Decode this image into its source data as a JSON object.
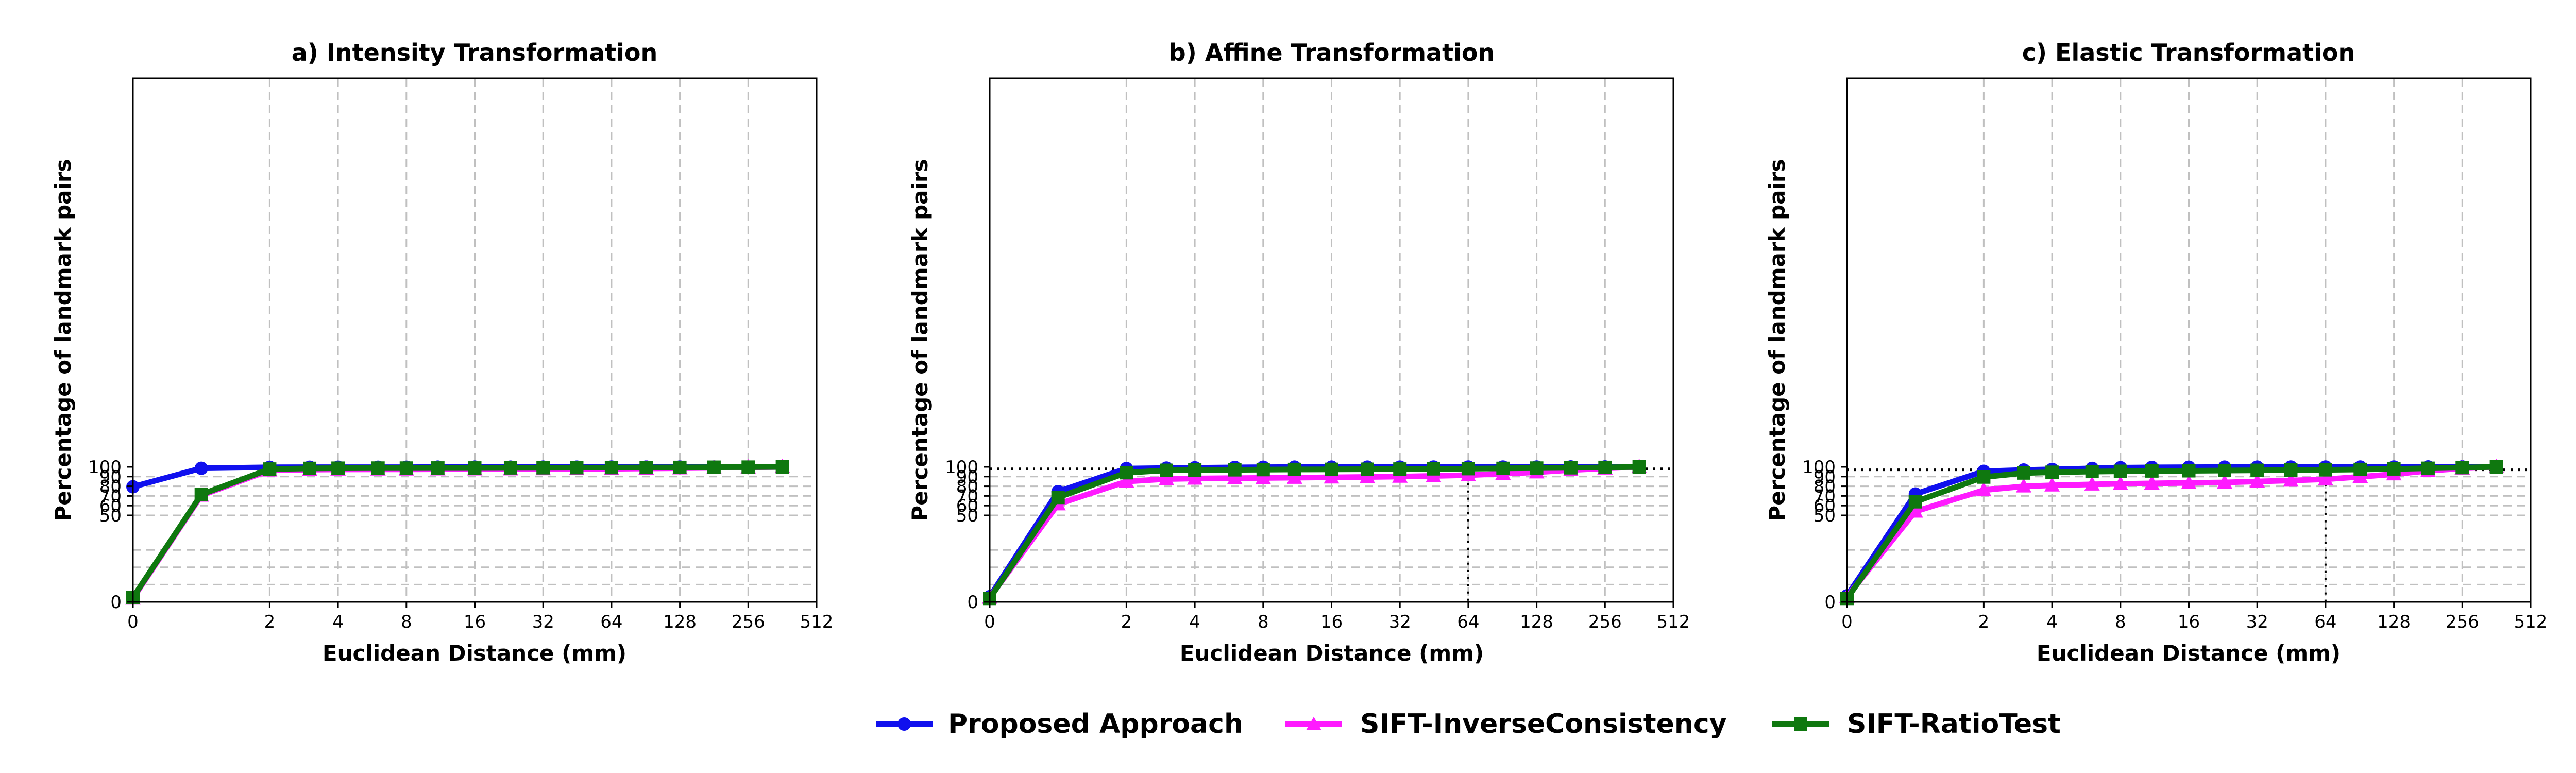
{
  "colors": {
    "proposed": "#1010ee",
    "sift_ic": "#ff1aff",
    "sift_rt": "#0f780f",
    "grid": "#c0c0c0",
    "axis": "#000000"
  },
  "legend": {
    "placement": "bottom-center",
    "items": [
      {
        "name": "Proposed Approach",
        "color": "#1010ee",
        "marker": "circle"
      },
      {
        "name": "SIFT-InverseConsistency",
        "color": "#ff1aff",
        "marker": "triangle"
      },
      {
        "name": "SIFT-RatioTest",
        "color": "#0f780f",
        "marker": "square"
      }
    ]
  },
  "chart_data": [
    {
      "type": "line",
      "title": "a) Intensity Transformation",
      "xlabel": "Euclidean Distance (mm)",
      "ylabel": "Percentage of landmark pairs",
      "x_scale": "log2 (symmetric, 0 at origin)",
      "xlim": [
        0,
        512
      ],
      "ylim": [
        0,
        100
      ],
      "grid": true,
      "x_ticks": [
        "0",
        "2",
        "4",
        "8",
        "16",
        "32",
        "64",
        "128",
        "256",
        "512"
      ],
      "y_ticks": [
        "0",
        "50",
        "60",
        "70",
        "80",
        "90",
        "100"
      ],
      "x": [
        0,
        1,
        2,
        3,
        4,
        6,
        8,
        11,
        16,
        23,
        32,
        45,
        64,
        91,
        128,
        181,
        256,
        362
      ],
      "series": [
        {
          "name": "Proposed Approach",
          "values": [
            79.5,
            98.6,
            99.6,
            99.7,
            99.7,
            99.7,
            99.7,
            99.8,
            99.8,
            99.8,
            99.8,
            99.8,
            99.9,
            99.9,
            99.9,
            99.9,
            99.9,
            100
          ]
        },
        {
          "name": "SIFT-InverseConsistency",
          "values": [
            2,
            70.5,
            96.5,
            97.2,
            97.4,
            97.5,
            97.5,
            97.6,
            97.6,
            97.7,
            97.8,
            97.9,
            98.1,
            98.4,
            98.7,
            99.1,
            99.6,
            100
          ]
        },
        {
          "name": "SIFT-RatioTest",
          "values": [
            2.5,
            71.5,
            97.8,
            98.5,
            98.7,
            98.8,
            98.8,
            98.9,
            98.9,
            99.0,
            99.1,
            99.2,
            99.3,
            99.4,
            99.5,
            99.7,
            99.8,
            100
          ]
        }
      ]
    },
    {
      "type": "line",
      "title": "b) Affine Transformation",
      "xlabel": "Euclidean Distance (mm)",
      "ylabel": "Percentage of landmark pairs",
      "x_scale": "log2 (symmetric, 0 at origin)",
      "xlim": [
        0,
        512
      ],
      "ylim": [
        0,
        100
      ],
      "grid": true,
      "x_ticks": [
        "0",
        "2",
        "4",
        "8",
        "16",
        "32",
        "64",
        "128",
        "256",
        "512"
      ],
      "y_ticks": [
        "0",
        "50",
        "60",
        "70",
        "80",
        "90",
        "100"
      ],
      "reference_lines": {
        "horizontal_y": 98,
        "vertical_x": 64
      },
      "x": [
        0,
        1,
        2,
        3,
        4,
        6,
        8,
        11,
        16,
        23,
        32,
        45,
        64,
        91,
        128,
        181,
        256,
        362
      ],
      "series": [
        {
          "name": "Proposed Approach",
          "values": [
            3,
            74.5,
            98.3,
            98.8,
            99.1,
            99.5,
            99.7,
            99.8,
            99.8,
            99.8,
            99.8,
            99.9,
            99.9,
            99.9,
            99.9,
            100,
            100,
            100
          ]
        },
        {
          "name": "SIFT-InverseConsistency",
          "values": [
            2.5,
            61.5,
            85,
            87.5,
            88,
            88.4,
            88.6,
            88.9,
            89.2,
            89.6,
            90,
            90.7,
            91.5,
            93,
            94.5,
            96.8,
            98.5,
            100
          ]
        },
        {
          "name": "SIFT-RatioTest",
          "values": [
            2,
            68.5,
            94,
            96.5,
            96.8,
            97,
            97.2,
            97.4,
            97.5,
            97.6,
            97.8,
            98,
            98.2,
            98.5,
            98.8,
            99.1,
            99.5,
            100
          ]
        }
      ]
    },
    {
      "type": "line",
      "title": "c) Elastic Transformation",
      "xlabel": "Euclidean Distance (mm)",
      "ylabel": "Percentage of landmark pairs",
      "x_scale": "log2 (symmetric, 0 at origin)",
      "xlim": [
        0,
        512
      ],
      "ylim": [
        0,
        100
      ],
      "grid": true,
      "x_ticks": [
        "0",
        "2",
        "4",
        "8",
        "16",
        "32",
        "64",
        "128",
        "256",
        "512"
      ],
      "y_ticks": [
        "0",
        "50",
        "60",
        "70",
        "80",
        "90",
        "100"
      ],
      "reference_lines": {
        "horizontal_y": 97,
        "vertical_x": 64
      },
      "x": [
        0,
        1,
        2,
        3,
        4,
        6,
        8,
        11,
        16,
        23,
        32,
        45,
        64,
        91,
        128,
        181,
        256,
        362
      ],
      "series": [
        {
          "name": "Proposed Approach",
          "values": [
            3.5,
            72,
            95.5,
            96.8,
            97.5,
            98.5,
            99.2,
            99.5,
            99.7,
            99.8,
            99.8,
            99.9,
            99.9,
            99.9,
            99.9,
            100,
            100,
            100
          ]
        },
        {
          "name": "SIFT-InverseConsistency",
          "values": [
            3,
            54,
            76,
            80,
            81,
            82,
            82.5,
            83,
            83.5,
            84,
            85,
            86,
            87.2,
            89.8,
            92.5,
            96,
            98.5,
            100
          ]
        },
        {
          "name": "SIFT-RatioTest",
          "values": [
            2,
            64,
            89.5,
            93.7,
            94.5,
            95.2,
            95.5,
            95.8,
            96,
            96.3,
            96.5,
            96.8,
            97,
            97.4,
            97.9,
            98.6,
            99.3,
            100
          ]
        }
      ]
    }
  ]
}
